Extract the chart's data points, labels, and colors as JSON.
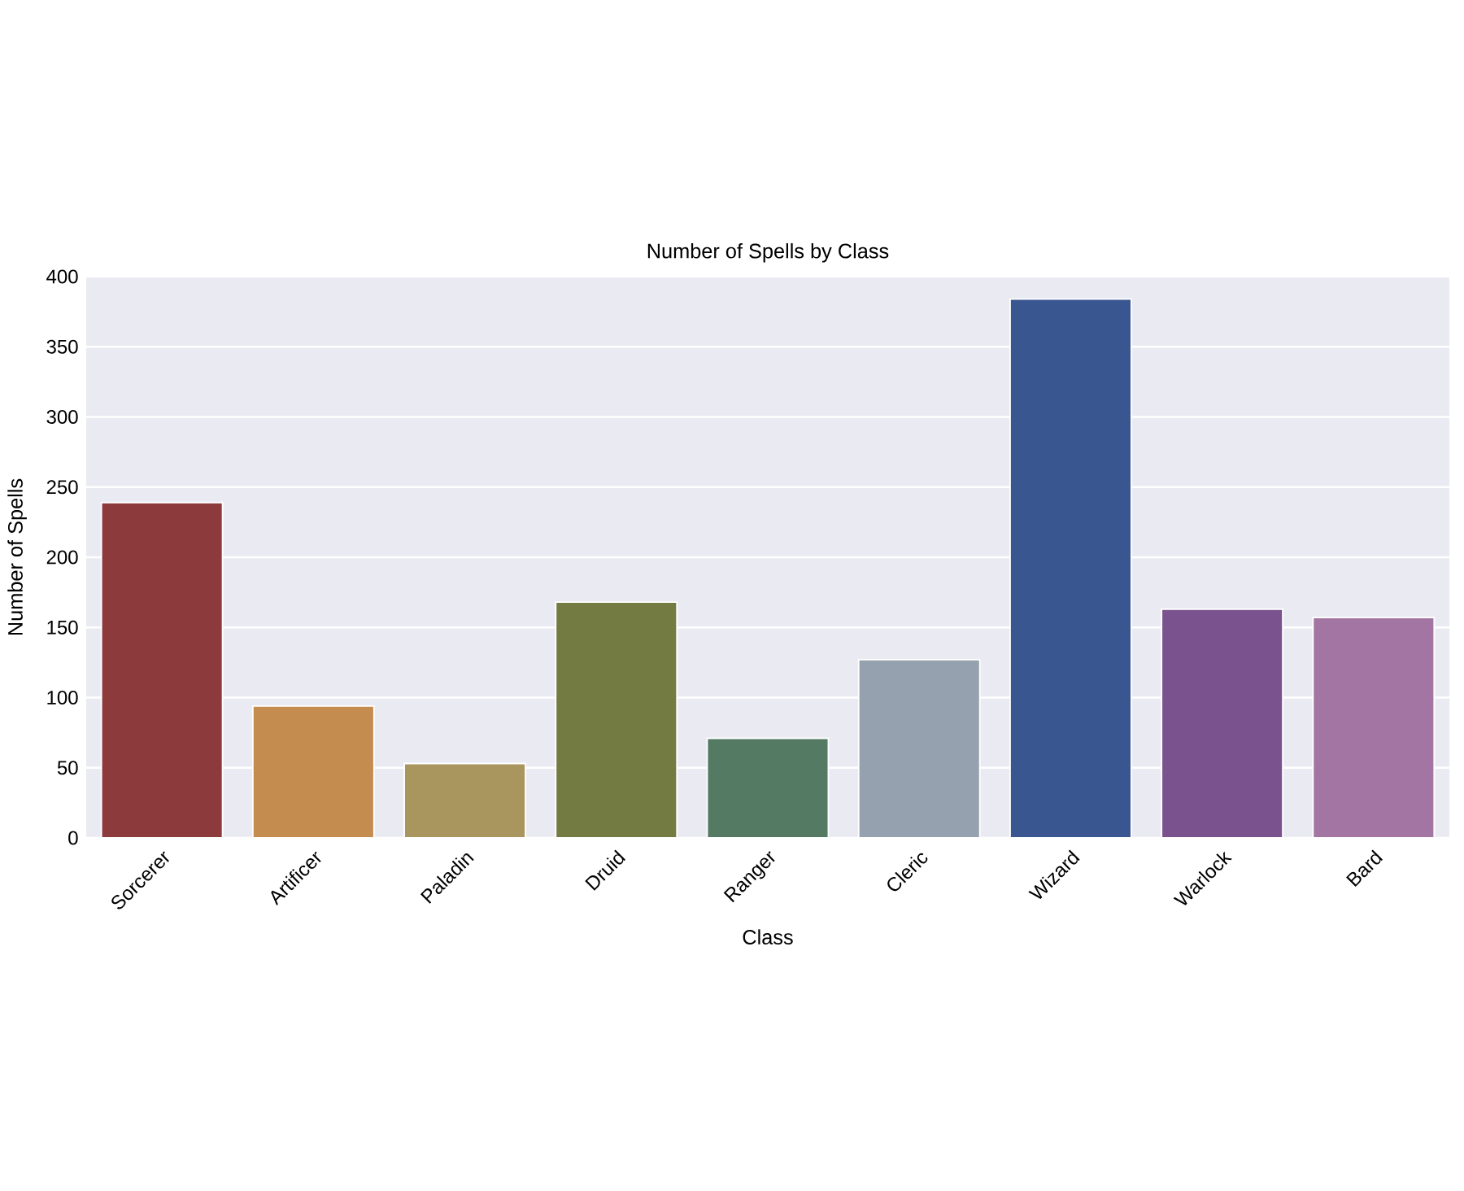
{
  "chart_data": {
    "type": "bar",
    "title": "Number of Spells by Class",
    "xlabel": "Class",
    "ylabel": "Number of Spells",
    "categories": [
      "Sorcerer",
      "Artificer",
      "Paladin",
      "Druid",
      "Ranger",
      "Cleric",
      "Wizard",
      "Warlock",
      "Bard"
    ],
    "values": [
      239,
      94,
      53,
      168,
      71,
      127,
      384,
      163,
      157
    ],
    "colors": [
      "#8c3a3c",
      "#c48c4e",
      "#a9965e",
      "#747b42",
      "#547a63",
      "#95a1ae",
      "#3a5690",
      "#7a528e",
      "#a375a3"
    ],
    "ylim": [
      0,
      400
    ],
    "yticks": [
      0,
      50,
      100,
      150,
      200,
      250,
      300,
      350,
      400
    ],
    "grid": "y"
  }
}
